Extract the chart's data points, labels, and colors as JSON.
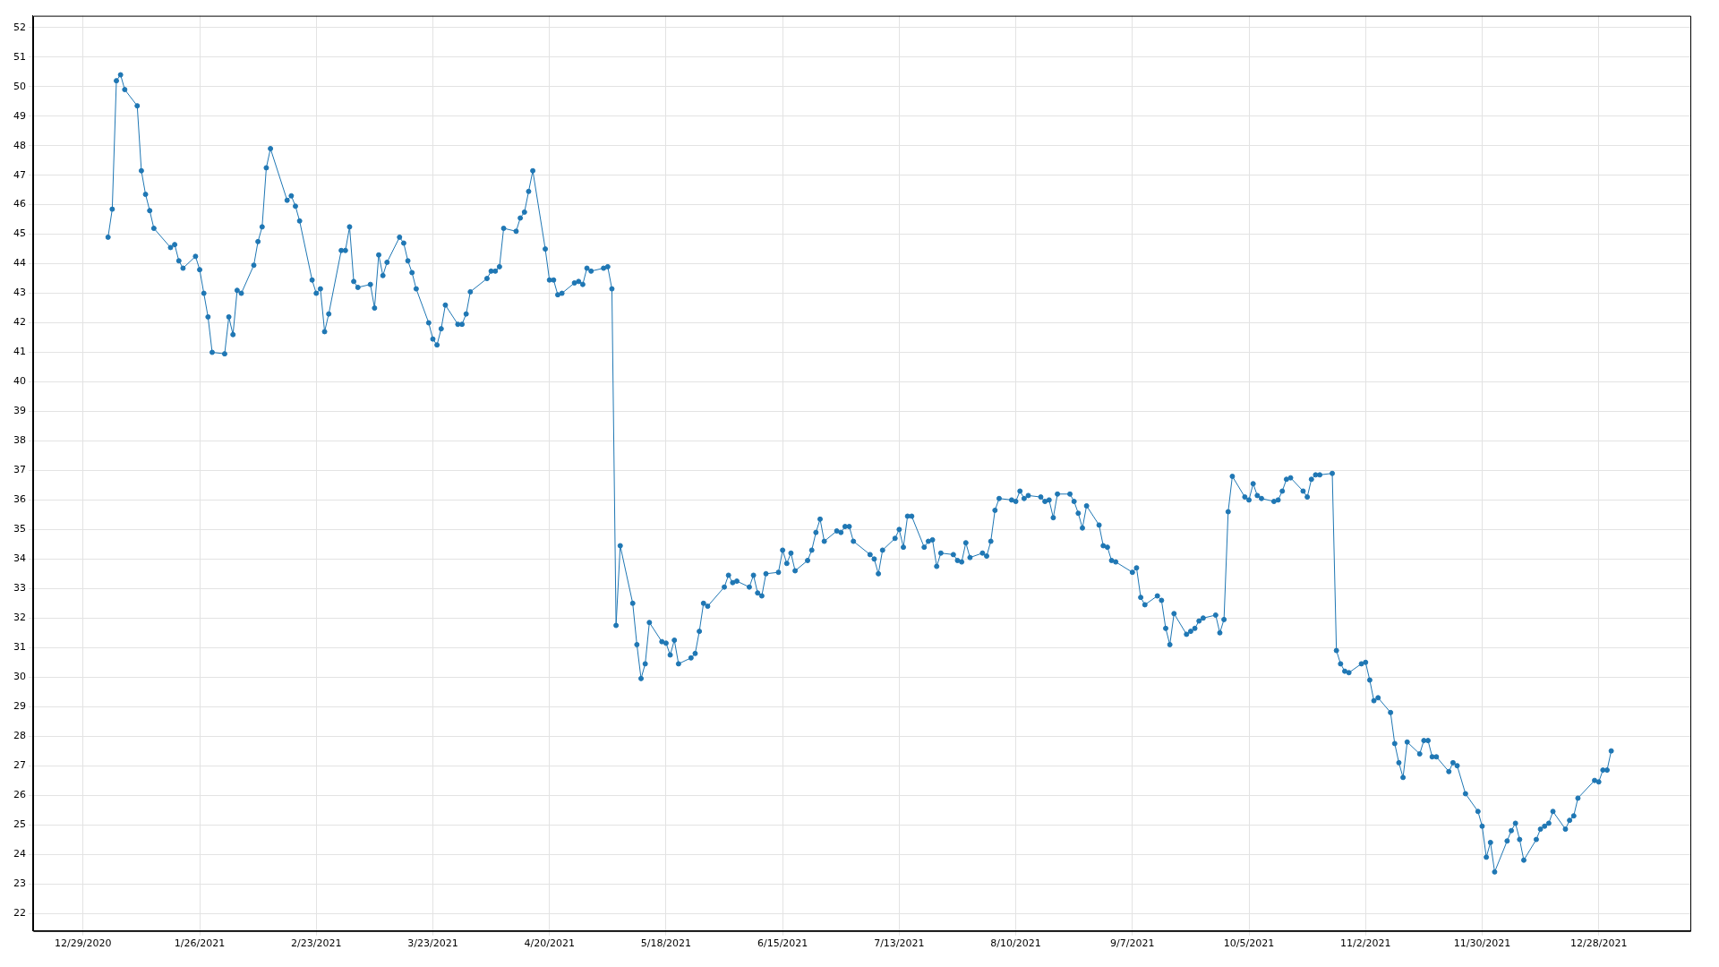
{
  "chart_data": {
    "type": "line",
    "grid": true,
    "marker": "circle",
    "line_style": "solid",
    "xlim": [
      "2020-12-17",
      "2022-01-19"
    ],
    "ylim": [
      21.4,
      52.4
    ],
    "xticks": [
      {
        "value": "2020-12-29",
        "label": "12/29/2020"
      },
      {
        "value": "2021-01-26",
        "label": "1/26/2021"
      },
      {
        "value": "2021-02-23",
        "label": "2/23/2021"
      },
      {
        "value": "2021-03-23",
        "label": "3/23/2021"
      },
      {
        "value": "2021-04-20",
        "label": "4/20/2021"
      },
      {
        "value": "2021-05-18",
        "label": "5/18/2021"
      },
      {
        "value": "2021-06-15",
        "label": "6/15/2021"
      },
      {
        "value": "2021-07-13",
        "label": "7/13/2021"
      },
      {
        "value": "2021-08-10",
        "label": "8/10/2021"
      },
      {
        "value": "2021-09-07",
        "label": "9/7/2021"
      },
      {
        "value": "2021-10-05",
        "label": "10/5/2021"
      },
      {
        "value": "2021-11-02",
        "label": "11/2/2021"
      },
      {
        "value": "2021-11-30",
        "label": "11/30/2021"
      },
      {
        "value": "2021-12-28",
        "label": "12/28/2021"
      }
    ],
    "yticks": [
      22,
      23,
      24,
      25,
      26,
      27,
      28,
      29,
      30,
      31,
      32,
      33,
      34,
      35,
      36,
      37,
      38,
      39,
      40,
      41,
      42,
      43,
      44,
      45,
      46,
      47,
      48,
      49,
      50,
      51,
      52
    ],
    "x": [
      "2021-01-04",
      "2021-01-05",
      "2021-01-06",
      "2021-01-07",
      "2021-01-08",
      "2021-01-11",
      "2021-01-12",
      "2021-01-13",
      "2021-01-14",
      "2021-01-15",
      "2021-01-19",
      "2021-01-20",
      "2021-01-21",
      "2021-01-22",
      "2021-01-25",
      "2021-01-26",
      "2021-01-27",
      "2021-01-28",
      "2021-01-29",
      "2021-02-01",
      "2021-02-02",
      "2021-02-03",
      "2021-02-04",
      "2021-02-05",
      "2021-02-08",
      "2021-02-09",
      "2021-02-10",
      "2021-02-11",
      "2021-02-12",
      "2021-02-16",
      "2021-02-17",
      "2021-02-18",
      "2021-02-19",
      "2021-02-22",
      "2021-02-23",
      "2021-02-24",
      "2021-02-25",
      "2021-02-26",
      "2021-03-01",
      "2021-03-02",
      "2021-03-03",
      "2021-03-04",
      "2021-03-05",
      "2021-03-08",
      "2021-03-09",
      "2021-03-10",
      "2021-03-11",
      "2021-03-12",
      "2021-03-15",
      "2021-03-16",
      "2021-03-17",
      "2021-03-18",
      "2021-03-19",
      "2021-03-22",
      "2021-03-23",
      "2021-03-24",
      "2021-03-25",
      "2021-03-26",
      "2021-03-29",
      "2021-03-30",
      "2021-03-31",
      "2021-04-01",
      "2021-04-05",
      "2021-04-06",
      "2021-04-07",
      "2021-04-08",
      "2021-04-09",
      "2021-04-12",
      "2021-04-13",
      "2021-04-14",
      "2021-04-15",
      "2021-04-16",
      "2021-04-19",
      "2021-04-20",
      "2021-04-21",
      "2021-04-22",
      "2021-04-23",
      "2021-04-26",
      "2021-04-27",
      "2021-04-28",
      "2021-04-29",
      "2021-04-30",
      "2021-05-03",
      "2021-05-04",
      "2021-05-05",
      "2021-05-06",
      "2021-05-07",
      "2021-05-10",
      "2021-05-11",
      "2021-05-12",
      "2021-05-13",
      "2021-05-14",
      "2021-05-17",
      "2021-05-18",
      "2021-05-19",
      "2021-05-20",
      "2021-05-21",
      "2021-05-24",
      "2021-05-25",
      "2021-05-26",
      "2021-05-27",
      "2021-05-28",
      "2021-06-01",
      "2021-06-02",
      "2021-06-03",
      "2021-06-04",
      "2021-06-07",
      "2021-06-08",
      "2021-06-09",
      "2021-06-10",
      "2021-06-11",
      "2021-06-14",
      "2021-06-15",
      "2021-06-16",
      "2021-06-17",
      "2021-06-18",
      "2021-06-21",
      "2021-06-22",
      "2021-06-23",
      "2021-06-24",
      "2021-06-25",
      "2021-06-28",
      "2021-06-29",
      "2021-06-30",
      "2021-07-01",
      "2021-07-02",
      "2021-07-06",
      "2021-07-07",
      "2021-07-08",
      "2021-07-09",
      "2021-07-12",
      "2021-07-13",
      "2021-07-14",
      "2021-07-15",
      "2021-07-16",
      "2021-07-19",
      "2021-07-20",
      "2021-07-21",
      "2021-07-22",
      "2021-07-23",
      "2021-07-26",
      "2021-07-27",
      "2021-07-28",
      "2021-07-29",
      "2021-07-30",
      "2021-08-02",
      "2021-08-03",
      "2021-08-04",
      "2021-08-05",
      "2021-08-06",
      "2021-08-09",
      "2021-08-10",
      "2021-08-11",
      "2021-08-12",
      "2021-08-13",
      "2021-08-16",
      "2021-08-17",
      "2021-08-18",
      "2021-08-19",
      "2021-08-20",
      "2021-08-23",
      "2021-08-24",
      "2021-08-25",
      "2021-08-26",
      "2021-08-27",
      "2021-08-30",
      "2021-08-31",
      "2021-09-01",
      "2021-09-02",
      "2021-09-03",
      "2021-09-07",
      "2021-09-08",
      "2021-09-09",
      "2021-09-10",
      "2021-09-13",
      "2021-09-14",
      "2021-09-15",
      "2021-09-16",
      "2021-09-17",
      "2021-09-20",
      "2021-09-21",
      "2021-09-22",
      "2021-09-23",
      "2021-09-24",
      "2021-09-27",
      "2021-09-28",
      "2021-09-29",
      "2021-09-30",
      "2021-10-01",
      "2021-10-04",
      "2021-10-05",
      "2021-10-06",
      "2021-10-07",
      "2021-10-08",
      "2021-10-11",
      "2021-10-12",
      "2021-10-13",
      "2021-10-14",
      "2021-10-15",
      "2021-10-18",
      "2021-10-19",
      "2021-10-20",
      "2021-10-21",
      "2021-10-22",
      "2021-10-25",
      "2021-10-26",
      "2021-10-27",
      "2021-10-28",
      "2021-10-29",
      "2021-11-01",
      "2021-11-02",
      "2021-11-03",
      "2021-11-04",
      "2021-11-05",
      "2021-11-08",
      "2021-11-09",
      "2021-11-10",
      "2021-11-11",
      "2021-11-12",
      "2021-11-15",
      "2021-11-16",
      "2021-11-17",
      "2021-11-18",
      "2021-11-19",
      "2021-11-22",
      "2021-11-23",
      "2021-11-24",
      "2021-11-26",
      "2021-11-29",
      "2021-11-30",
      "2021-12-01",
      "2021-12-02",
      "2021-12-03",
      "2021-12-06",
      "2021-12-07",
      "2021-12-08",
      "2021-12-09",
      "2021-12-10",
      "2021-12-13",
      "2021-12-14",
      "2021-12-15",
      "2021-12-16",
      "2021-12-17",
      "2021-12-20",
      "2021-12-21",
      "2021-12-22",
      "2021-12-23",
      "2021-12-27",
      "2021-12-28",
      "2021-12-29",
      "2021-12-30",
      "2021-12-31"
    ],
    "series": [
      {
        "color": "#1f77b4",
        "values": [
          44.9,
          45.85,
          50.2,
          50.4,
          49.9,
          49.35,
          47.15,
          46.35,
          45.8,
          45.2,
          44.55,
          44.65,
          44.1,
          43.85,
          44.25,
          43.8,
          43.0,
          42.2,
          41.0,
          40.95,
          42.2,
          41.6,
          43.1,
          43.0,
          43.95,
          44.75,
          45.25,
          47.25,
          47.9,
          46.15,
          46.3,
          45.95,
          45.45,
          43.45,
          43.0,
          43.15,
          41.7,
          42.3,
          44.45,
          44.45,
          45.25,
          43.4,
          43.2,
          43.3,
          42.5,
          44.3,
          43.6,
          44.05,
          44.9,
          44.7,
          44.1,
          43.7,
          43.15,
          42.0,
          41.45,
          41.25,
          41.8,
          42.6,
          41.95,
          41.95,
          42.3,
          43.05,
          43.5,
          43.75,
          43.75,
          43.9,
          45.2,
          45.1,
          45.55,
          45.75,
          46.45,
          47.15,
          44.5,
          43.45,
          43.45,
          42.95,
          43.0,
          43.35,
          43.4,
          43.3,
          43.85,
          43.75,
          43.85,
          43.9,
          43.15,
          31.75,
          34.45,
          32.5,
          31.1,
          29.95,
          30.45,
          31.85,
          31.2,
          31.15,
          30.75,
          31.25,
          30.45,
          30.65,
          30.8,
          31.55,
          32.5,
          32.4,
          33.05,
          33.45,
          33.2,
          33.25,
          33.05,
          33.45,
          32.85,
          32.75,
          33.5,
          33.55,
          34.3,
          33.85,
          34.2,
          33.6,
          33.95,
          34.3,
          34.9,
          35.35,
          34.6,
          34.95,
          34.9,
          35.1,
          35.1,
          34.6,
          34.15,
          34.0,
          33.5,
          34.3,
          34.7,
          35.0,
          34.4,
          35.45,
          35.45,
          34.4,
          34.6,
          34.65,
          33.75,
          34.2,
          34.15,
          33.95,
          33.9,
          34.55,
          34.05,
          34.2,
          34.1,
          34.6,
          35.65,
          36.05,
          36.0,
          35.95,
          36.3,
          36.05,
          36.15,
          36.1,
          35.95,
          36.0,
          35.4,
          36.2,
          36.2,
          35.95,
          35.55,
          35.05,
          35.8,
          35.15,
          34.45,
          34.4,
          33.95,
          33.9,
          33.55,
          33.7,
          32.7,
          32.45,
          32.75,
          32.6,
          31.65,
          31.1,
          32.15,
          31.45,
          31.55,
          31.65,
          31.9,
          32.0,
          32.1,
          31.5,
          31.95,
          35.6,
          36.8,
          36.1,
          36.0,
          36.55,
          36.15,
          36.05,
          35.95,
          36.0,
          36.3,
          36.7,
          36.75,
          36.3,
          36.1,
          36.7,
          36.85,
          36.85,
          36.9,
          30.9,
          30.45,
          30.2,
          30.15,
          30.45,
          30.5,
          29.9,
          29.2,
          29.3,
          28.8,
          27.75,
          27.1,
          26.6,
          27.8,
          27.4,
          27.85,
          27.85,
          27.3,
          27.3,
          26.8,
          27.1,
          27.0,
          26.05,
          25.45,
          24.95,
          23.9,
          24.4,
          23.4,
          24.45,
          24.8,
          25.05,
          24.5,
          23.8,
          24.5,
          24.85,
          24.95,
          25.05,
          25.45,
          24.85,
          25.15,
          25.3,
          25.9,
          26.5,
          26.45,
          26.85,
          26.85,
          27.5
        ]
      }
    ]
  }
}
